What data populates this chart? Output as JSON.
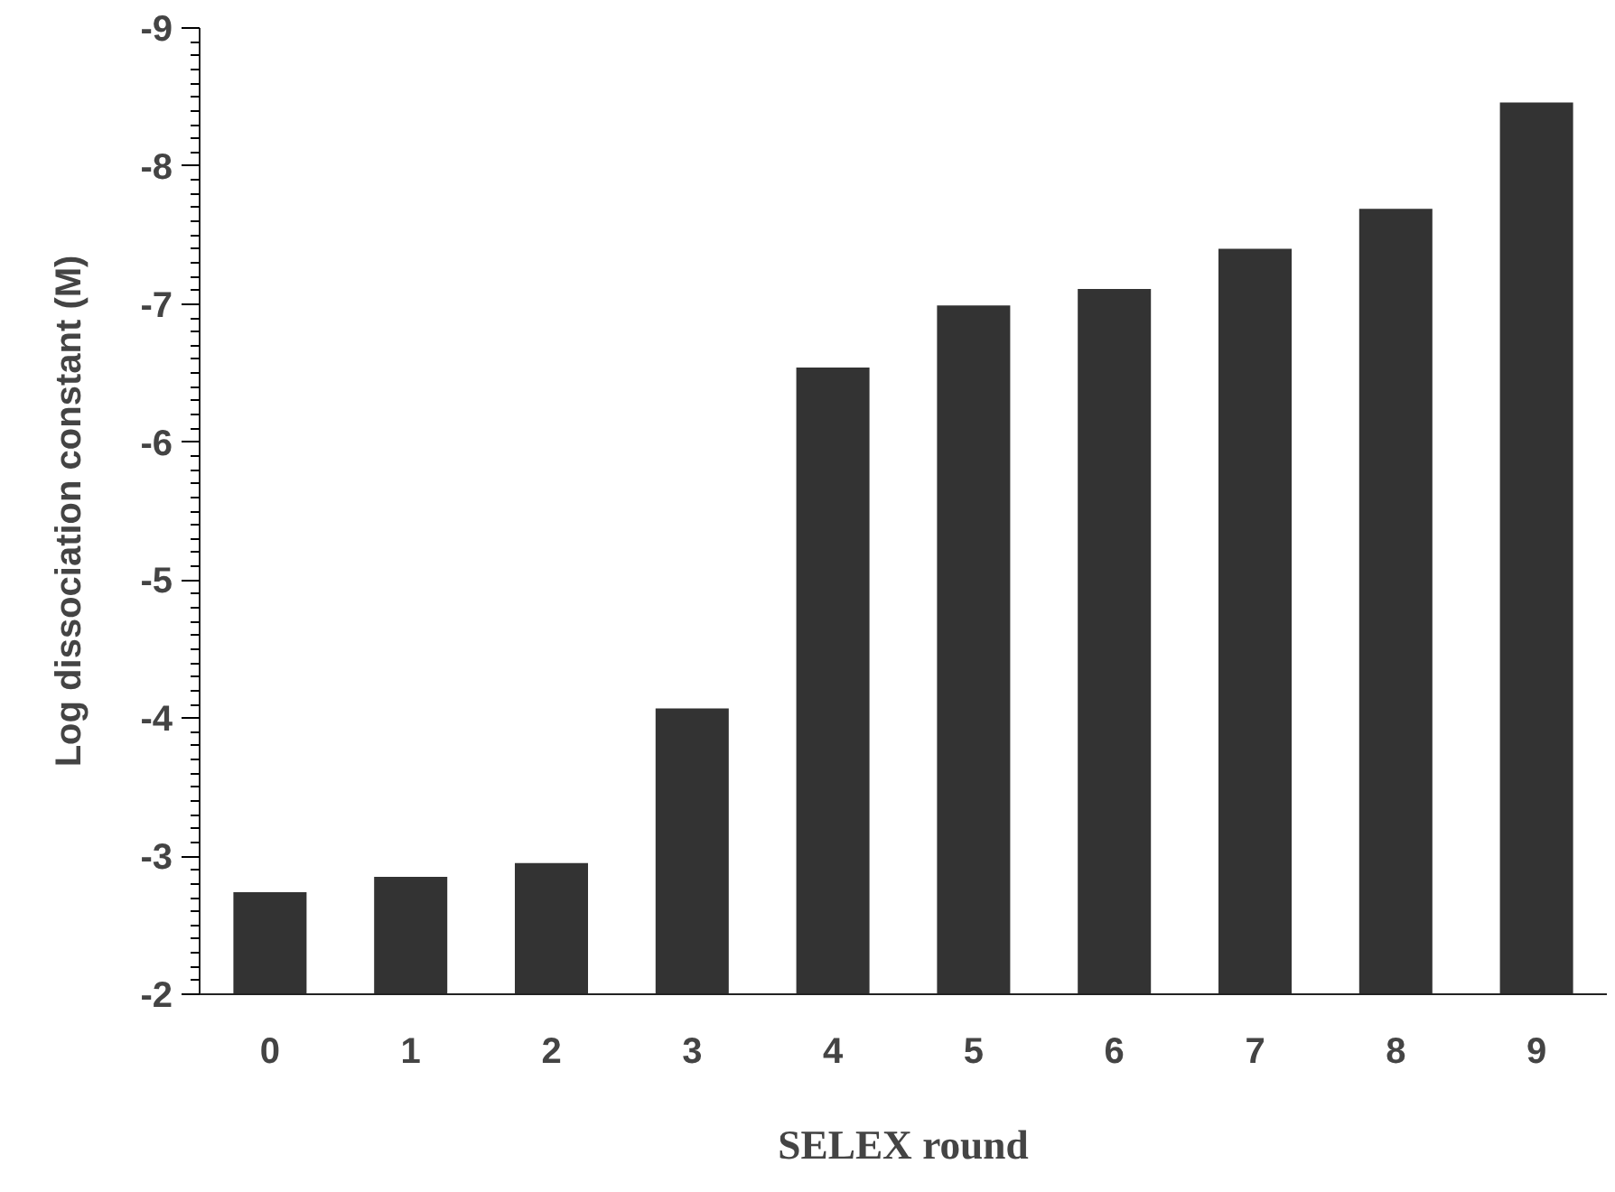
{
  "chart_data": {
    "type": "bar",
    "xlabel": "SELEX round",
    "ylabel": "Log dissociation constant (M)",
    "categories": [
      "0",
      "1",
      "2",
      "3",
      "4",
      "5",
      "6",
      "7",
      "8",
      "9"
    ],
    "values": [
      -2.74,
      -2.85,
      -2.95,
      -4.07,
      -6.54,
      -6.99,
      -7.11,
      -7.4,
      -7.69,
      -8.46
    ],
    "color": "#333333",
    "ylim": [
      -2,
      -9
    ],
    "yticks": [
      -2,
      -3,
      -4,
      -5,
      -6,
      -7,
      -8,
      -9
    ],
    "grid": false
  }
}
